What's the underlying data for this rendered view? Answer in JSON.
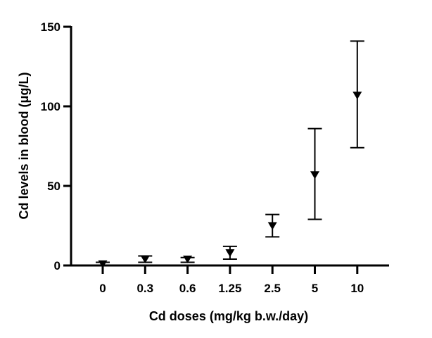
{
  "chart_data": {
    "type": "scatter",
    "title": "",
    "xlabel": "Cd doses (mg/kg b.w./day)",
    "ylabel": "Cd levels in blood (μg/L)",
    "categories": [
      "0",
      "0.3",
      "0.6",
      "1.25",
      "2.5",
      "5",
      "10"
    ],
    "series": [
      {
        "marker": "down-triangle",
        "color": "#000000",
        "values": [
          1,
          4,
          4,
          8,
          25,
          57,
          107
        ],
        "error_low": [
          0,
          2,
          2,
          4,
          18,
          29,
          74
        ],
        "error_high": [
          2,
          6,
          5,
          12,
          32,
          86,
          141
        ]
      }
    ],
    "ylim": [
      0,
      150
    ],
    "yticks": [
      "0",
      "50",
      "100",
      "150"
    ],
    "grid": false,
    "legend": "none"
  }
}
